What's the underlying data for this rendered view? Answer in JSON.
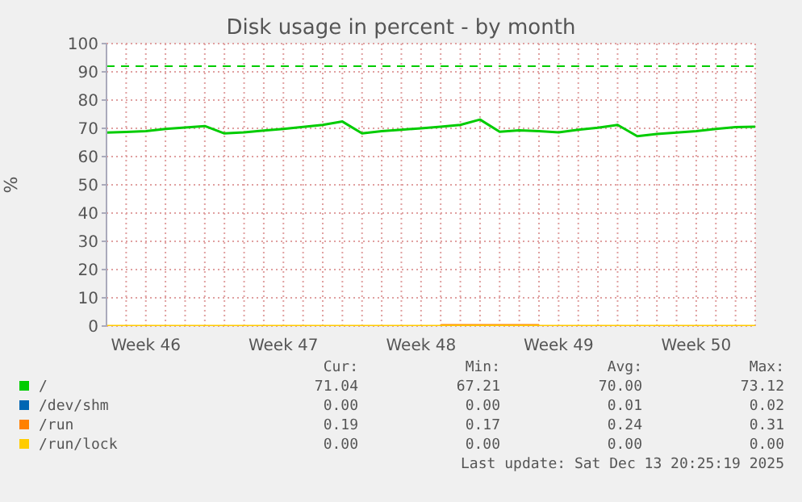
{
  "chart_data": {
    "type": "line",
    "title": "Disk usage in percent - by month",
    "ylabel": "%",
    "categories": [
      null,
      null,
      "Week 46",
      null,
      null,
      null,
      null,
      null,
      null,
      "Week 47",
      null,
      null,
      null,
      null,
      null,
      null,
      "Week 48",
      null,
      null,
      null,
      null,
      null,
      null,
      "Week 49",
      null,
      null,
      null,
      null,
      null,
      null,
      "Week 50",
      null,
      null,
      null
    ],
    "ylim": [
      0,
      100
    ],
    "yticks": [
      0,
      10,
      20,
      30,
      40,
      50,
      60,
      70,
      80,
      90,
      100
    ],
    "grid": true,
    "legend": "bottom",
    "series": [
      {
        "name": "/",
        "color": "#00cc00",
        "values": [
          68.5,
          68.7,
          69.0,
          69.8,
          70.3,
          70.8,
          68.2,
          68.6,
          69.2,
          69.8,
          70.5,
          71.2,
          72.4,
          68.2,
          69.0,
          69.5,
          70.0,
          70.6,
          71.2,
          73.1,
          68.8,
          69.3,
          69.0,
          68.6,
          69.5,
          70.2,
          71.2,
          67.2,
          68.0,
          68.5,
          69.0,
          69.8,
          70.4,
          70.6
        ]
      },
      {
        "name": "/dev/shm",
        "color": "#0066b3",
        "values": [
          null,
          null,
          null,
          null,
          null,
          null,
          null,
          null,
          null,
          null,
          null,
          null,
          null,
          null,
          null,
          null,
          null,
          null,
          null,
          null,
          null,
          null,
          null,
          null,
          null,
          null,
          null,
          null,
          null,
          null,
          null,
          null,
          null,
          null
        ]
      },
      {
        "name": "/run",
        "color": "#ff8000",
        "values": [
          null,
          null,
          null,
          null,
          null,
          null,
          null,
          null,
          null,
          null,
          null,
          null,
          null,
          null,
          null,
          null,
          null,
          0.3,
          0.3,
          0.3,
          0.3,
          0.3,
          0.3,
          null,
          null,
          null,
          null,
          null,
          null,
          null,
          null,
          null,
          null,
          null
        ]
      },
      {
        "name": "/run/lock",
        "color": "#ffcc00",
        "values": [
          0,
          0,
          0,
          0,
          0,
          0,
          0,
          0,
          0,
          0,
          0,
          0,
          0,
          0,
          0,
          0,
          0,
          0,
          0,
          0,
          0,
          0,
          0,
          0,
          0,
          0,
          0,
          0,
          0,
          0,
          0,
          0,
          0,
          0
        ]
      }
    ],
    "ref_lines": [
      {
        "axis": "y",
        "value": 92,
        "color": "#00cc00",
        "line_style": "dashed"
      }
    ],
    "annotations": [
      "Cur:",
      "Min:",
      "Avg:",
      "Max:",
      "71.04",
      "67.21",
      "70.00",
      "73.12",
      "0.00",
      "0.00",
      "0.01",
      "0.02",
      "0.19",
      "0.17",
      "0.24",
      "0.31",
      "0.00",
      "0.00",
      "0.00",
      "0.00",
      "Last update: Sat Dec 13 20:25:19 2025"
    ]
  }
}
